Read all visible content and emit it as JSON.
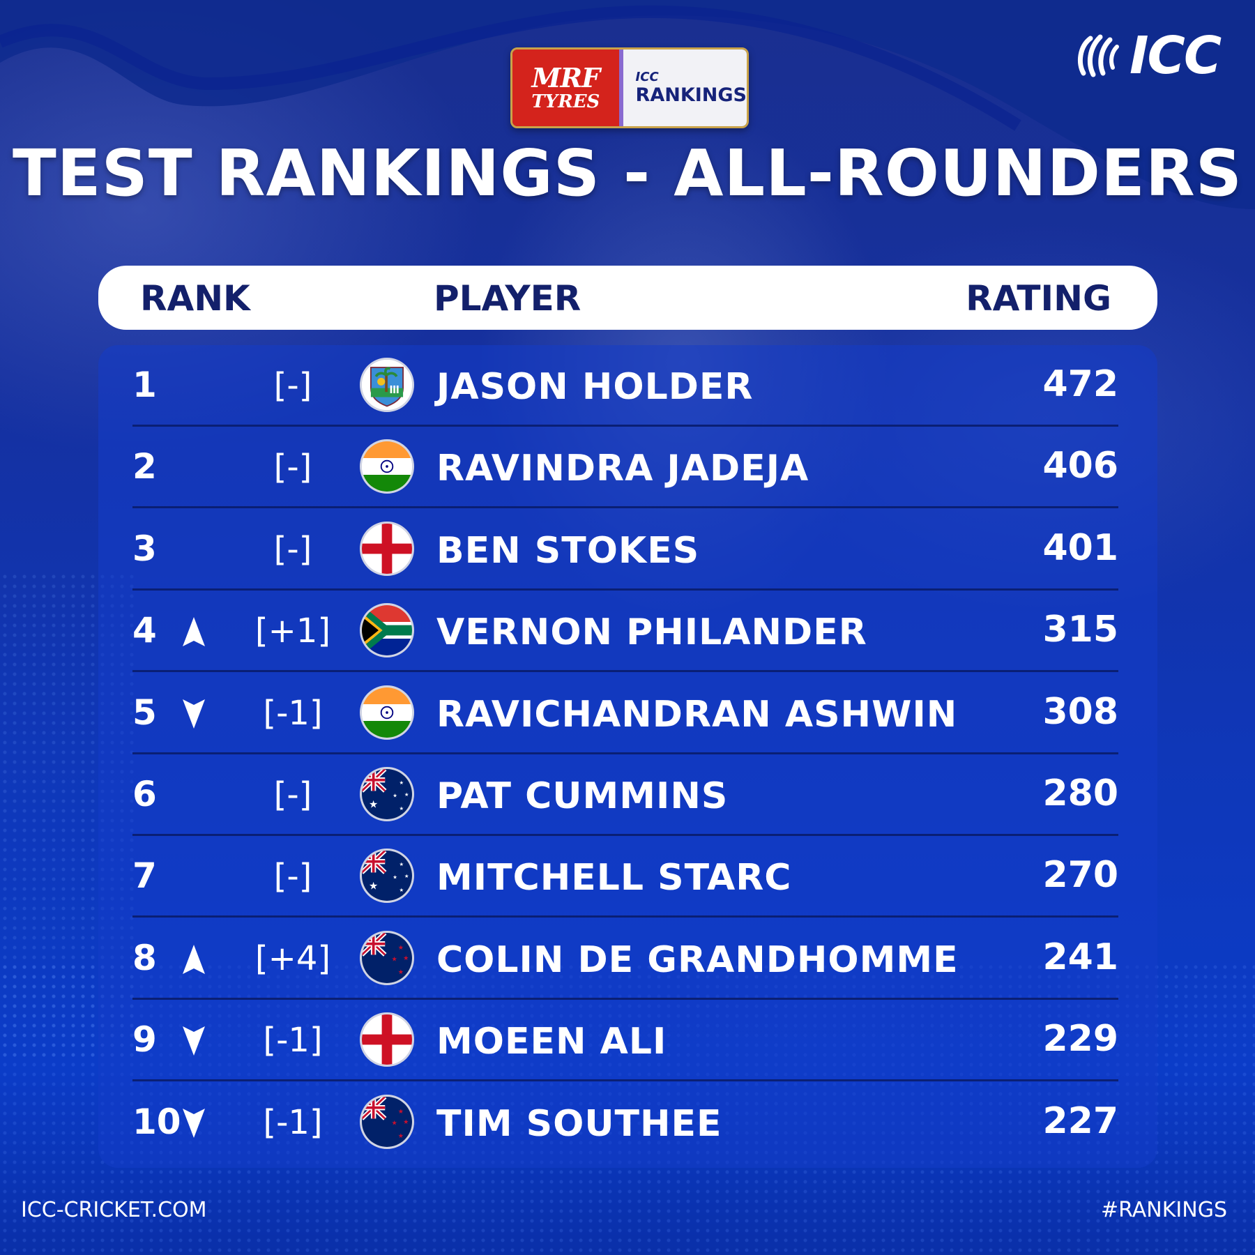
{
  "sponsor": {
    "mrf_line1": "MRF",
    "mrf_line2": "TYRES",
    "icc_small": "ICC",
    "rankings": "RANKINGS"
  },
  "brand": {
    "logo_text": "ICC"
  },
  "title": "TEST RANKINGS - ALL-ROUNDERS",
  "header": {
    "rank": "RANK",
    "player": "PLAYER",
    "rating": "RATING"
  },
  "rows": [
    {
      "rank": "1",
      "trend": "none",
      "change": "[-]",
      "flag": "west-indies-flag",
      "name": "JASON HOLDER",
      "rating": "472"
    },
    {
      "rank": "2",
      "trend": "none",
      "change": "[-]",
      "flag": "india-flag",
      "name": "RAVINDRA JADEJA",
      "rating": "406"
    },
    {
      "rank": "3",
      "trend": "none",
      "change": "[-]",
      "flag": "england-flag",
      "name": "BEN STOKES",
      "rating": "401"
    },
    {
      "rank": "4",
      "trend": "up",
      "change": "[+1]",
      "flag": "south-africa-flag",
      "name": "VERNON PHILANDER",
      "rating": "315"
    },
    {
      "rank": "5",
      "trend": "down",
      "change": "[-1]",
      "flag": "india-flag",
      "name": "RAVICHANDRAN ASHWIN",
      "rating": "308"
    },
    {
      "rank": "6",
      "trend": "none",
      "change": "[-]",
      "flag": "australia-flag",
      "name": "PAT CUMMINS",
      "rating": "280"
    },
    {
      "rank": "7",
      "trend": "none",
      "change": "[-]",
      "flag": "australia-flag",
      "name": "MITCHELL STARC",
      "rating": "270"
    },
    {
      "rank": "8",
      "trend": "up",
      "change": "[+4]",
      "flag": "new-zealand-flag",
      "name": "COLIN DE GRANDHOMME",
      "rating": "241"
    },
    {
      "rank": "9",
      "trend": "down",
      "change": "[-1]",
      "flag": "england-flag",
      "name": "MOEEN ALI",
      "rating": "229"
    },
    {
      "rank": "10",
      "trend": "down",
      "change": "[-1]",
      "flag": "new-zealand-flag",
      "name": "TIM SOUTHEE",
      "rating": "227"
    }
  ],
  "footer": {
    "website": "ICC-CRICKET.COM",
    "hashtag": "#RANKINGS"
  },
  "colors": {
    "panel": "#1c44c4",
    "header_text": "#13206b",
    "row_separator": "#0a1f74",
    "mrf_red": "#d4231c"
  }
}
